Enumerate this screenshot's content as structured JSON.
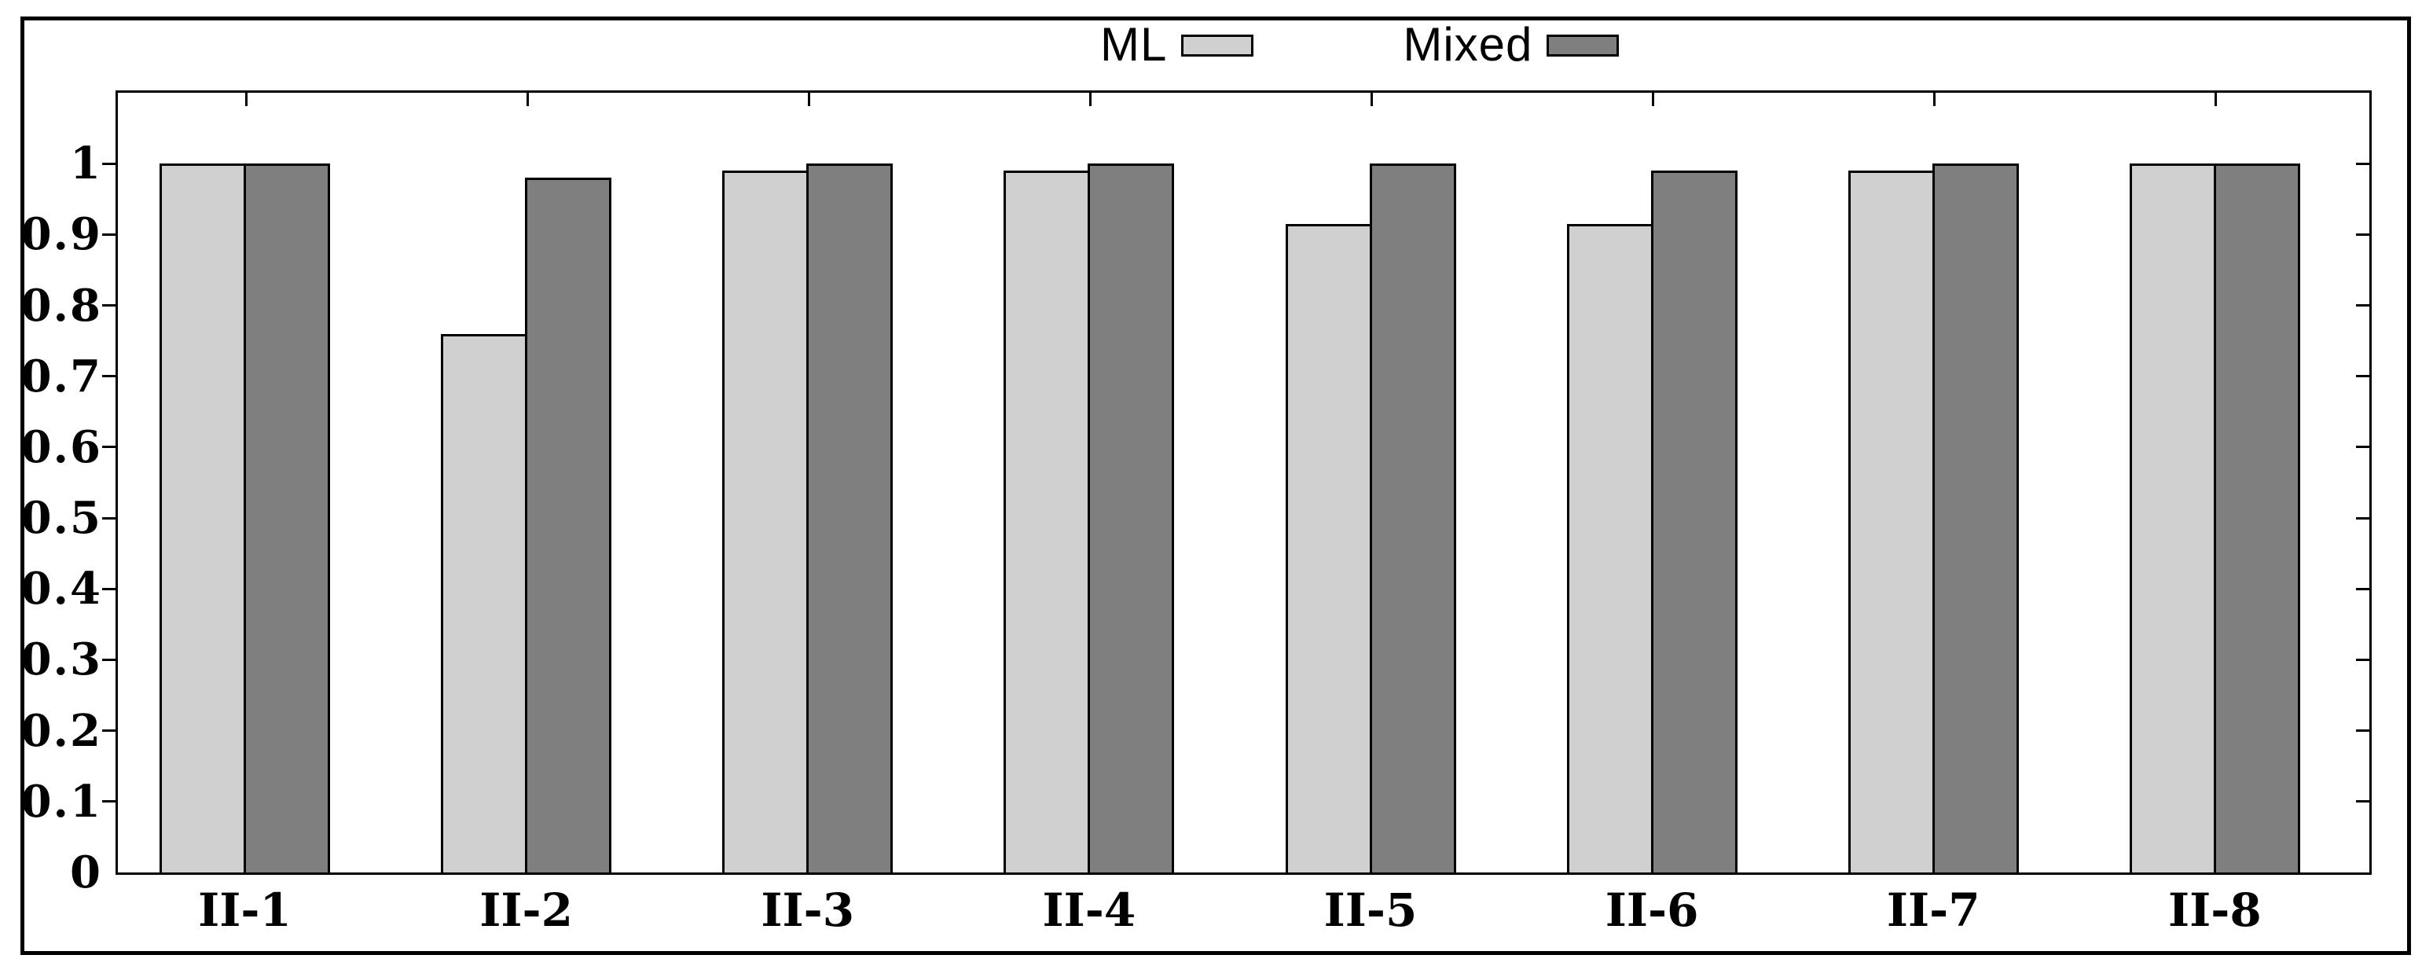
{
  "chart_data": {
    "type": "bar",
    "title": "",
    "categories": [
      "II-1",
      "II-2",
      "II-3",
      "II-4",
      "II-5",
      "II-6",
      "II-7",
      "II-8"
    ],
    "series": [
      {
        "name": "ML",
        "color": "#d0d0d0",
        "values": [
          1.0,
          0.76,
          0.99,
          0.99,
          0.915,
          0.915,
          0.99,
          1.0
        ]
      },
      {
        "name": "Mixed",
        "color": "#7f7f7f",
        "values": [
          1.0,
          0.98,
          1.0,
          1.0,
          1.0,
          0.99,
          1.0,
          1.0
        ]
      }
    ],
    "xlabel": "",
    "ylabel": "",
    "ylim": [
      0,
      1.1
    ],
    "yticks": [
      0,
      0.1,
      0.2,
      0.3,
      0.4,
      0.5,
      0.6,
      0.7,
      0.8,
      0.9,
      1
    ],
    "ytick_labels": [
      "0",
      "0.1",
      "0.2",
      "0.3",
      "0.4",
      "0.5",
      "0.6",
      "0.7",
      "0.8",
      "0.9",
      "1"
    ],
    "grid": false,
    "legend_position": "top-center",
    "bar_border_color": "#000000",
    "frame_color": "#000000",
    "background_color": "#ffffff"
  }
}
